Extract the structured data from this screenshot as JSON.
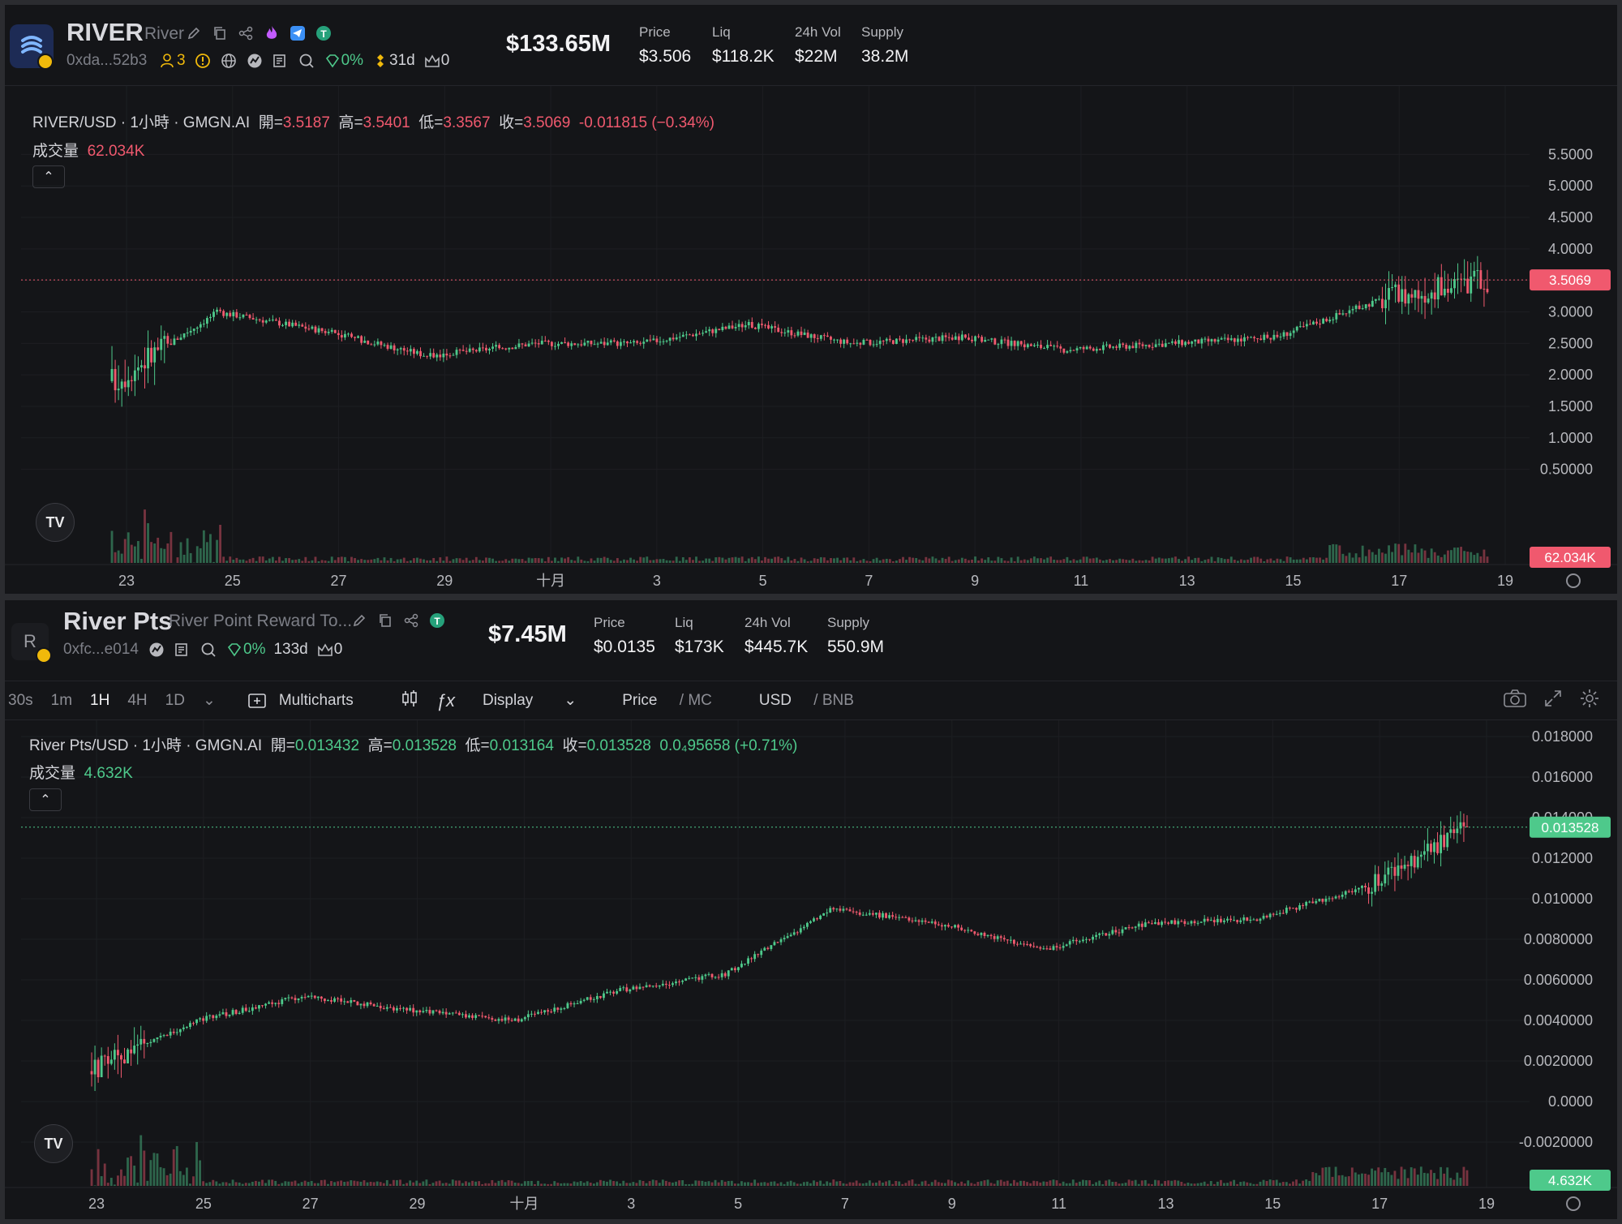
{
  "top": {
    "token_symbol": "RIVER",
    "token_name": "River",
    "address": "0xda...52b3",
    "holders_count": "3",
    "tax": "0%",
    "age": "31d",
    "crown_count": "0",
    "market_cap": "$133.65M",
    "stats": [
      {
        "label": "Price",
        "value": "$3.506"
      },
      {
        "label": "Liq",
        "value": "$118.2K"
      },
      {
        "label": "24h Vol",
        "value": "$22M"
      },
      {
        "label": "Supply",
        "value": "38.2M"
      }
    ],
    "legend": {
      "pair": "RIVER/USD · 1小時 · GMGN.AI",
      "open_label": "開=",
      "open": "3.5187",
      "high_label": "高=",
      "high": "3.5401",
      "low_label": "低=",
      "low": "3.3567",
      "close_label": "收=",
      "close": "3.5069",
      "change": "-0.011815 (−0.34%)",
      "volume_label": "成交量",
      "volume": "62.034K"
    },
    "y_ticks": [
      "5.5000",
      "5.0000",
      "4.5000",
      "4.0000",
      "3.5000",
      "3.0000",
      "2.5000",
      "2.0000",
      "1.5000",
      "1.0000",
      "0.50000"
    ],
    "x_ticks": [
      "23",
      "25",
      "27",
      "29",
      "十月",
      "3",
      "5",
      "7",
      "9",
      "11",
      "13",
      "15",
      "17",
      "19"
    ],
    "last_price_tag": "3.5069",
    "volume_tag": "62.034K",
    "colors": {
      "up": "#4ec98b",
      "down": "#f0596e"
    }
  },
  "bottom": {
    "logo_letter": "R",
    "token_symbol": "River Pts",
    "token_name": "River Point Reward To...",
    "address": "0xfc...e014",
    "tax": "0%",
    "age": "133d",
    "crown_count": "0",
    "market_cap": "$7.45M",
    "stats": [
      {
        "label": "Price",
        "value": "$0.0135"
      },
      {
        "label": "Liq",
        "value": "$173K"
      },
      {
        "label": "24h Vol",
        "value": "$445.7K"
      },
      {
        "label": "Supply",
        "value": "550.9M"
      }
    ],
    "toolbar": {
      "intervals": [
        "30s",
        "1m",
        "1H",
        "4H",
        "1D"
      ],
      "active_interval": "1H",
      "multicharts": "Multicharts",
      "display": "Display",
      "price_mc_a": "Price",
      "price_mc_b": "/ MC",
      "usd_bnb_a": "USD",
      "usd_bnb_b": "/ BNB"
    },
    "legend": {
      "pair": "River Pts/USD · 1小時 · GMGN.AI",
      "open_label": "開=",
      "open": "0.013432",
      "high_label": "高=",
      "high": "0.013528",
      "low_label": "低=",
      "low": "0.013164",
      "close_label": "收=",
      "close": "0.013528",
      "change": "0.0₄95658 (+0.71%)",
      "volume_label": "成交量",
      "volume": "4.632K"
    },
    "y_ticks": [
      "0.018000",
      "0.016000",
      "0.014000",
      "0.012000",
      "0.010000",
      "0.0080000",
      "0.0060000",
      "0.0040000",
      "0.0020000",
      "0.0000",
      "-0.0020000"
    ],
    "x_ticks": [
      "23",
      "25",
      "27",
      "29",
      "十月",
      "3",
      "5",
      "7",
      "9",
      "11",
      "13",
      "15",
      "17",
      "19"
    ],
    "last_price_tag": "0.013528",
    "volume_tag": "4.632K"
  },
  "chart_data": [
    {
      "type": "candlestick",
      "title": "RIVER/USD · 1小時 · GMGN.AI",
      "x": [
        "23",
        "25",
        "27",
        "29",
        "十月",
        "3",
        "5",
        "7",
        "9",
        "11",
        "13",
        "15",
        "17",
        "19"
      ],
      "ylim": [
        0.25,
        5.75
      ],
      "series": [
        {
          "name": "close",
          "values": [
            1.9,
            3.0,
            2.7,
            2.3,
            2.5,
            2.5,
            2.8,
            2.5,
            2.6,
            2.4,
            2.5,
            2.6,
            3.2,
            3.51
          ]
        }
      ],
      "last_price": 3.5069
    },
    {
      "type": "candlestick",
      "title": "River Pts/USD · 1小時 · GMGN.AI",
      "x": [
        "23",
        "25",
        "27",
        "29",
        "十月",
        "3",
        "5",
        "7",
        "9",
        "11",
        "13",
        "15",
        "17",
        "19"
      ],
      "ylim": [
        -0.0022,
        0.018
      ],
      "series": [
        {
          "name": "close",
          "values": [
            0.0015,
            0.004,
            0.0052,
            0.0045,
            0.004,
            0.0055,
            0.0063,
            0.0095,
            0.0088,
            0.0075,
            0.0088,
            0.009,
            0.0105,
            0.0135
          ]
        }
      ],
      "last_price": 0.013528
    }
  ]
}
